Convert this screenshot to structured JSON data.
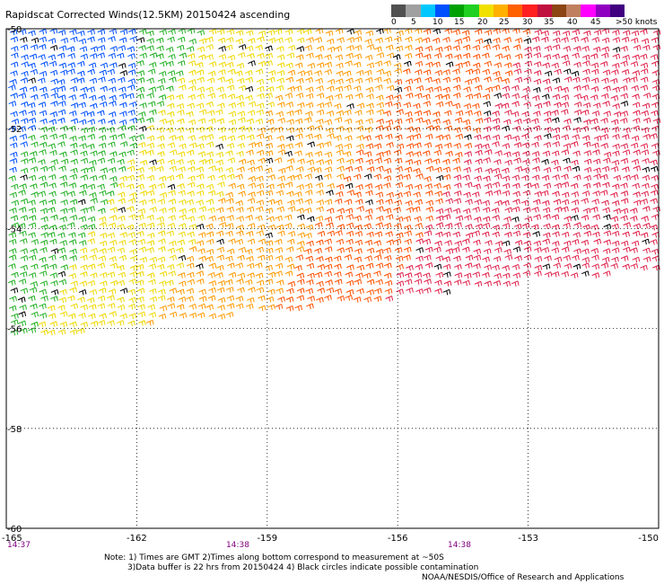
{
  "title": "Rapidscat Corrected Winds(12.5KM) 20150424 ascending",
  "legend": {
    "colors": [
      "#505050",
      "#a0a0a0",
      "#00c8ff",
      "#0050ff",
      "#00a000",
      "#20d020",
      "#f0e000",
      "#ffb000",
      "#ff6000",
      "#ff2020",
      "#c01040",
      "#8b4513",
      "#c08060",
      "#ff00ff",
      "#9000c0",
      "#400080"
    ],
    "labels": [
      "0",
      "5",
      "10",
      "15",
      "20",
      "25",
      "30",
      "35",
      "40",
      "45",
      ">50 knots"
    ]
  },
  "axes": {
    "lat_labels": [
      "-50",
      "-52",
      "-54",
      "-56",
      "-58",
      "-60"
    ],
    "lon_labels": [
      "-165",
      "-162",
      "-159",
      "-156",
      "-153",
      "-150"
    ],
    "lat_values": [
      -50,
      -52,
      -54,
      -56,
      -58,
      -60
    ],
    "lon_values": [
      -165,
      -162,
      -159,
      -156,
      -153,
      -150
    ]
  },
  "times": [
    "14:37",
    "14:38",
    "14:38"
  ],
  "notes": {
    "line1": "Note: 1) Times are GMT 2)Times along bottom correspond to measurement at ~50S",
    "line2": "3)Data buffer is 22 hrs from 20150424 4) Black circles indicate possible contamination"
  },
  "credit": "NOAA/NESDIS/Office of Research and Applications"
}
